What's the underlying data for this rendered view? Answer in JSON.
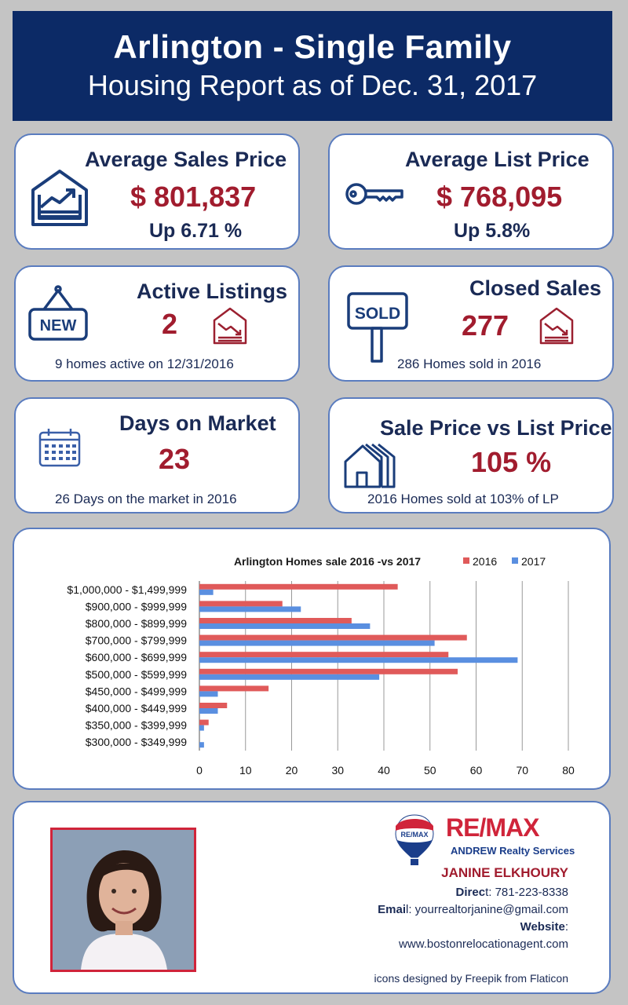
{
  "header": {
    "title": "Arlington - Single Family",
    "subtitle": "Housing Report as of Dec. 31, 2017"
  },
  "cards": {
    "avg_sales": {
      "title": "Average Sales Price",
      "value": "$ 801,837",
      "change": "Up 6.71 %",
      "icon": "house-chart-icon"
    },
    "avg_list": {
      "title": "Average List  Price",
      "value": "$ 768,095",
      "change": "Up 5.8%",
      "icon": "key-icon"
    },
    "active": {
      "title": "Active Listings",
      "value": "2",
      "note": "9 homes active on 12/31/2016",
      "icon": "new-sign-icon"
    },
    "closed": {
      "title": "Closed Sales",
      "value": "277",
      "note": "286 Homes sold in 2016",
      "icon": "sold-sign-icon"
    },
    "days": {
      "title": "Days on Market",
      "value": "23",
      "note": "26 Days on the market in 2016",
      "icon": "calendar-icon"
    },
    "ratio": {
      "title": "Sale Price vs List Price",
      "value": "105 %",
      "note": "2016 Homes sold at 103% of LP",
      "icon": "houses-icon"
    }
  },
  "chart_data": {
    "type": "bar",
    "orientation": "horizontal",
    "title": "Arlington Homes sale 2016 -vs 2017",
    "categories": [
      "$1,000,000 - $1,499,999",
      "$900,000 - $999,999",
      "$800,000 - $899,999",
      "$700,000 - $799,999",
      "$600,000 - $699,999",
      "$500,000 - $599,999",
      "$450,000 - $499,999",
      "$400,000 - $449,999",
      "$350,000 - $399,999",
      "$300,000 - $349,999"
    ],
    "series": [
      {
        "name": "2016",
        "color": "#e05a5a",
        "values": [
          43,
          18,
          33,
          58,
          54,
          56,
          15,
          6,
          2,
          0
        ]
      },
      {
        "name": "2017",
        "color": "#5a8fe0",
        "values": [
          3,
          22,
          37,
          51,
          69,
          39,
          4,
          4,
          1,
          1
        ]
      }
    ],
    "xlim": [
      0,
      80
    ],
    "xticks": [
      0,
      10,
      20,
      30,
      40,
      50,
      60,
      70,
      80
    ],
    "grid": true,
    "legend": "top-right"
  },
  "agent": {
    "brand": "RE/MAX",
    "office": "ANDREW Realty Services",
    "balloon_text": "RE/MAX",
    "name": "JANINE ELKHOURY",
    "direct_label": "Direc",
    "direct_rest": "t: 781-223-8338",
    "email_label": "Emai",
    "email_rest": "l: yourrealtorjanine@gmail.com",
    "website_label": "Website",
    "website_colon": ":",
    "website": "www.bostonrelocationagent.com",
    "credit": "icons designed by Freepik from Flaticon"
  }
}
